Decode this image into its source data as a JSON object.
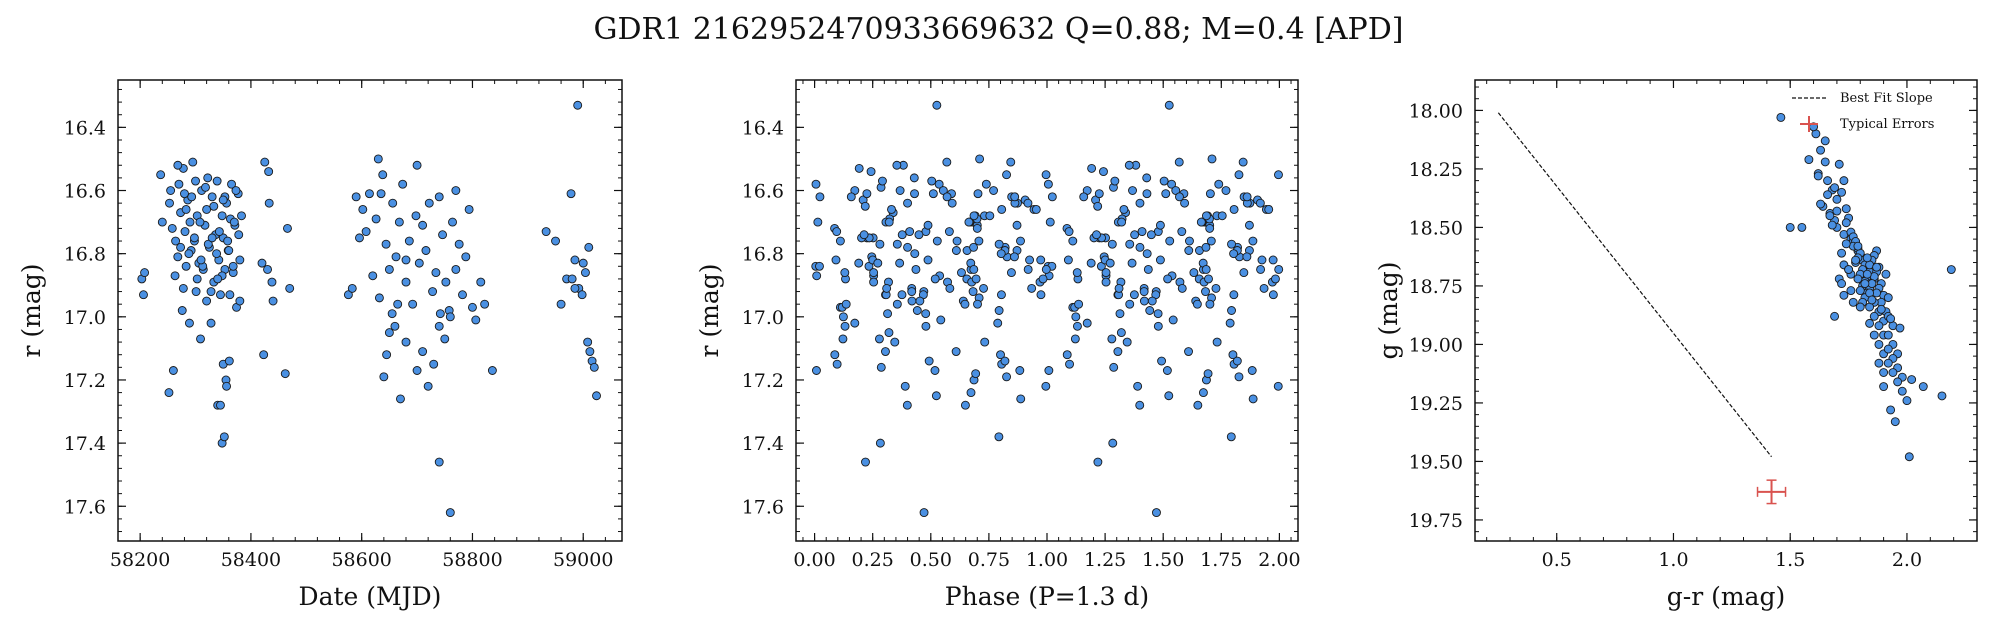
{
  "figure_title": "GDR1 2162952470933669632  Q=0.88; M=0.4 [APD]",
  "colors": {
    "point_fill": "#4a90e2",
    "point_edge": "#1a1a1a",
    "error_bar": "#d9534f",
    "fit_line": "#111111"
  },
  "chart_data": [
    {
      "type": "scatter",
      "title": "",
      "xlabel": "Date (MJD)",
      "ylabel": "r (mag)",
      "xlim": [
        58160,
        59070
      ],
      "ylim": [
        17.71,
        16.25
      ],
      "y_inverted": true,
      "xticks": [
        58200,
        58400,
        58600,
        58800,
        59000
      ],
      "yticks": [
        16.4,
        16.6,
        16.8,
        17.0,
        17.2,
        17.4,
        17.6
      ],
      "ytick_labels": [
        "16.4",
        "16.6",
        "16.8",
        "17.0",
        "17.2",
        "17.4",
        "17.6"
      ],
      "grid": false,
      "x": [
        58203,
        58206,
        58208,
        58237,
        58240,
        58252,
        58255,
        58260,
        58264,
        58268,
        58270,
        58273,
        58276,
        58278,
        58281,
        58283,
        58286,
        58289,
        58292,
        58295,
        58298,
        58301,
        58303,
        58306,
        58309,
        58311,
        58314,
        58317,
        58320,
        58322,
        58325,
        58328,
        58330,
        58333,
        58336,
        58339,
        58342,
        58345,
        58348,
        58350,
        58353,
        58356,
        58359,
        58362,
        58365,
        58368,
        58371,
        58374,
        58377,
        58380,
        58383,
        58253,
        58258,
        58263,
        58268,
        58273,
        58278,
        58283,
        58288,
        58293,
        58298,
        58303,
        58308,
        58313,
        58318,
        58323,
        58328,
        58333,
        58338,
        58343,
        58348,
        58353,
        58358,
        58363,
        58368,
        58373,
        58378,
        58280,
        58290,
        58300,
        58310,
        58320,
        58330,
        58340,
        58350,
        58360,
        58370,
        58380,
        58340,
        58345,
        58350,
        58355,
        58348,
        58352,
        58356,
        58361,
        58420,
        58425,
        58430,
        58433,
        58438,
        58462,
        58466,
        58470,
        58423,
        58432,
        58440,
        58576,
        58583,
        58590,
        58596,
        58602,
        58608,
        58614,
        58620,
        58626,
        58632,
        58638,
        58644,
        58650,
        58656,
        58662,
        58668,
        58674,
        58680,
        58686,
        58692,
        58698,
        58704,
        58710,
        58716,
        58722,
        58728,
        58734,
        58740,
        58746,
        58752,
        58758,
        58764,
        58770,
        58776,
        58782,
        58788,
        58794,
        58800,
        58806,
        58815,
        58822,
        58836,
        58640,
        58645,
        58650,
        58655,
        58660,
        58665,
        58670,
        58680,
        58700,
        58710,
        58720,
        58730,
        58740,
        58750,
        58760,
        58770,
        58630,
        58635,
        58700,
        58740,
        58760,
        58680,
        58742,
        58933,
        58950,
        58960,
        58970,
        58978,
        58985,
        58992,
        58998,
        59004,
        59008,
        59012,
        59016,
        59020,
        59024,
        58985,
        58990,
        58980,
        59010,
        59000
      ],
      "y": [
        16.88,
        16.93,
        16.86,
        16.55,
        16.7,
        17.24,
        16.6,
        17.17,
        16.76,
        16.81,
        16.58,
        16.67,
        16.98,
        16.53,
        16.73,
        16.84,
        16.63,
        17.02,
        16.79,
        16.51,
        16.76,
        16.92,
        16.68,
        16.83,
        17.07,
        16.6,
        16.85,
        16.71,
        16.95,
        16.56,
        16.78,
        17.02,
        16.62,
        16.89,
        16.74,
        16.57,
        16.82,
        16.93,
        16.68,
        16.75,
        16.85,
        16.64,
        16.79,
        16.93,
        16.58,
        16.86,
        16.71,
        16.97,
        16.61,
        16.82,
        16.68,
        16.64,
        16.72,
        16.87,
        16.52,
        16.78,
        16.91,
        16.66,
        16.8,
        16.62,
        16.75,
        16.88,
        16.7,
        16.84,
        16.59,
        16.77,
        16.92,
        16.65,
        16.8,
        16.73,
        16.87,
        16.62,
        16.76,
        16.69,
        16.84,
        16.6,
        16.74,
        16.61,
        16.7,
        16.57,
        16.82,
        16.66,
        16.75,
        16.88,
        16.63,
        16.79,
        16.7,
        16.95,
        17.28,
        17.28,
        17.15,
        17.2,
        17.4,
        17.38,
        17.22,
        17.14,
        16.83,
        16.51,
        16.85,
        16.64,
        16.89,
        17.18,
        16.72,
        16.91,
        17.12,
        16.54,
        16.95,
        16.93,
        16.91,
        16.62,
        16.75,
        16.66,
        16.73,
        16.61,
        16.87,
        16.69,
        16.94,
        16.55,
        16.77,
        16.85,
        16.64,
        16.81,
        16.7,
        16.58,
        16.89,
        16.76,
        16.96,
        16.68,
        16.83,
        16.71,
        16.79,
        16.64,
        16.92,
        16.86,
        16.62,
        16.74,
        16.89,
        16.98,
        16.7,
        16.85,
        16.77,
        16.93,
        16.81,
        16.66,
        16.97,
        17.01,
        16.89,
        16.96,
        17.17,
        17.19,
        17.12,
        17.05,
        16.99,
        17.03,
        16.96,
        17.26,
        17.08,
        17.17,
        17.11,
        17.22,
        17.15,
        17.03,
        17.07,
        17.0,
        16.6,
        16.5,
        16.61,
        16.52,
        17.46,
        17.62,
        16.82,
        16.99,
        16.73,
        16.76,
        16.96,
        16.88,
        16.61,
        16.82,
        16.91,
        16.93,
        16.86,
        17.08,
        17.11,
        17.14,
        17.16,
        17.25,
        16.91,
        16.33,
        16.88,
        16.78,
        16.83
      ]
    },
    {
      "type": "scatter",
      "title": "",
      "xlabel": "Phase (P=1.3 d)",
      "ylabel": "r (mag)",
      "xlim": [
        -0.08,
        2.08
      ],
      "ylim": [
        17.71,
        16.25
      ],
      "y_inverted": true,
      "xticks": [
        0.0,
        0.25,
        0.5,
        0.75,
        1.0,
        1.25,
        1.5,
        1.75,
        2.0
      ],
      "xtick_labels": [
        "0.00",
        "0.25",
        "0.50",
        "0.75",
        "1.00",
        "1.25",
        "1.50",
        "1.75",
        "2.00"
      ],
      "yticks": [
        16.4,
        16.6,
        16.8,
        17.0,
        17.2,
        17.4,
        17.6
      ],
      "ytick_labels": [
        "16.4",
        "16.6",
        "16.8",
        "17.0",
        "17.2",
        "17.4",
        "17.6"
      ],
      "grid": false,
      "points_note": "phase-folded r magnitudes, two cycles",
      "x": [],
      "y": []
    },
    {
      "type": "scatter",
      "title": "",
      "xlabel": "g-r (mag)",
      "ylabel": "g (mag)",
      "xlim": [
        0.15,
        2.3
      ],
      "ylim": [
        19.84,
        17.87
      ],
      "y_inverted": true,
      "xticks": [
        0.5,
        1.0,
        1.5,
        2.0
      ],
      "xtick_labels": [
        "0.5",
        "1.0",
        "1.5",
        "2.0"
      ],
      "yticks": [
        18.0,
        18.25,
        18.5,
        18.75,
        19.0,
        19.25,
        19.5,
        19.75
      ],
      "ytick_labels": [
        "18.00",
        "18.25",
        "18.50",
        "18.75",
        "19.00",
        "19.25",
        "19.50",
        "19.75"
      ],
      "grid": false,
      "legend": {
        "placement": "top-right",
        "entries": [
          "Best Fit Slope",
          "Typical Errors"
        ]
      },
      "fit_line": {
        "x": [
          0.25,
          1.42
        ],
        "y": [
          18.01,
          19.48
        ]
      },
      "typical_error": {
        "x": 1.42,
        "y": 19.63,
        "xerr": 0.06,
        "yerr": 0.05
      },
      "legend_error_marker": {
        "x": 1.59,
        "y": 18.06
      },
      "x": [
        1.46,
        1.55,
        1.61,
        1.63,
        1.65,
        1.62,
        1.66,
        1.68,
        1.7,
        1.64,
        1.67,
        1.69,
        1.72,
        1.74,
        1.7,
        1.73,
        1.75,
        1.76,
        1.78,
        1.72,
        1.74,
        1.77,
        1.79,
        1.81,
        1.73,
        1.76,
        1.78,
        1.8,
        1.82,
        1.75,
        1.77,
        1.79,
        1.81,
        1.83,
        1.76,
        1.78,
        1.8,
        1.82,
        1.84,
        1.86,
        1.77,
        1.79,
        1.81,
        1.83,
        1.85,
        1.87,
        1.78,
        1.8,
        1.82,
        1.84,
        1.86,
        1.88,
        1.79,
        1.81,
        1.83,
        1.85,
        1.87,
        1.89,
        1.8,
        1.82,
        1.84,
        1.86,
        1.88,
        1.9,
        1.81,
        1.83,
        1.85,
        1.87,
        1.89,
        1.91,
        1.82,
        1.84,
        1.86,
        1.88,
        1.9,
        1.92,
        1.84,
        1.86,
        1.88,
        1.9,
        1.92,
        1.94,
        1.86,
        1.88,
        1.9,
        1.92,
        1.94,
        1.96,
        1.88,
        1.9,
        1.92,
        1.94,
        1.96,
        1.98,
        1.9,
        1.92,
        1.94,
        1.96,
        1.98,
        2.0,
        1.95,
        2.02,
        2.07,
        2.15,
        2.19,
        1.93,
        2.01,
        1.5,
        1.58,
        1.62,
        1.66,
        1.7,
        1.68,
        1.74,
        1.78,
        1.71,
        1.75,
        1.73,
        1.69,
        1.76,
        1.8,
        1.84,
        1.79,
        1.83,
        1.87,
        1.91,
        1.85,
        1.89,
        1.93,
        1.97,
        1.71,
        1.73,
        1.65,
        1.6,
        1.63,
        1.67,
        1.72,
        1.77,
        1.69
      ],
      "y": [
        18.03,
        18.5,
        18.1,
        18.17,
        18.22,
        18.27,
        18.3,
        18.34,
        18.38,
        18.41,
        18.44,
        18.47,
        18.35,
        18.42,
        18.5,
        18.53,
        18.46,
        18.55,
        18.58,
        18.61,
        18.48,
        18.56,
        18.6,
        18.63,
        18.66,
        18.52,
        18.57,
        18.62,
        18.65,
        18.68,
        18.54,
        18.59,
        18.64,
        18.67,
        18.7,
        18.56,
        18.61,
        18.66,
        18.69,
        18.72,
        18.58,
        18.63,
        18.68,
        18.71,
        18.74,
        18.6,
        18.65,
        18.7,
        18.73,
        18.76,
        18.62,
        18.67,
        18.72,
        18.75,
        18.78,
        18.64,
        18.69,
        18.74,
        18.77,
        18.8,
        18.66,
        18.71,
        18.76,
        18.79,
        18.82,
        18.7,
        18.74,
        18.78,
        18.82,
        18.86,
        18.74,
        18.78,
        18.82,
        18.86,
        18.9,
        18.8,
        18.84,
        18.88,
        18.92,
        18.96,
        18.88,
        18.92,
        18.96,
        19.0,
        19.04,
        18.96,
        19.0,
        19.04,
        19.08,
        19.12,
        19.02,
        19.06,
        19.1,
        19.14,
        19.18,
        19.08,
        19.12,
        19.16,
        19.2,
        19.24,
        19.33,
        19.15,
        19.18,
        19.22,
        18.68,
        19.28,
        19.48,
        18.5,
        18.21,
        18.28,
        18.36,
        18.43,
        18.49,
        18.57,
        18.64,
        18.72,
        18.68,
        18.79,
        18.88,
        18.77,
        18.84,
        18.91,
        18.58,
        18.63,
        18.67,
        18.7,
        18.81,
        18.85,
        18.89,
        18.93,
        18.23,
        18.3,
        18.13,
        18.07,
        18.4,
        18.45,
        18.74,
        18.82,
        18.33
      ]
    }
  ]
}
